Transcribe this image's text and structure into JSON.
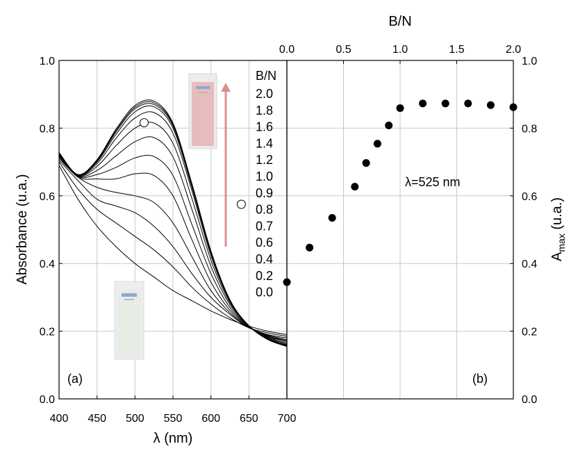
{
  "chart_data": [
    {
      "type": "line",
      "panel_label": "(a)",
      "xlabel": "λ (nm)",
      "ylabel": "Absorbance (u.a.)",
      "xlim": [
        400,
        700
      ],
      "ylim": [
        0.0,
        1.0
      ],
      "x_ticks": [
        "400",
        "450",
        "500",
        "550",
        "600",
        "650",
        "700"
      ],
      "y_ticks": [
        "0.0",
        "0.2",
        "0.4",
        "0.6",
        "0.8",
        "1.0"
      ],
      "grid": true,
      "legend_title": "B/N",
      "legend_entries": [
        "2.0",
        "1.8",
        "1.6",
        "1.4",
        "1.2",
        "1.0",
        "0.9",
        "0.8",
        "0.7",
        "0.6",
        "0.4",
        "0.2",
        "0.0"
      ],
      "arrow_color": "#d9908c",
      "series": [
        {
          "values": [
            [
              400,
              0.69
            ],
            [
              425,
              0.59
            ],
            [
              450,
              0.51
            ],
            [
              475,
              0.45
            ],
            [
              500,
              0.4
            ],
            [
              525,
              0.36
            ],
            [
              550,
              0.32
            ],
            [
              575,
              0.29
            ],
            [
              600,
              0.26
            ],
            [
              625,
              0.235
            ],
            [
              650,
              0.215
            ],
            [
              675,
              0.2
            ],
            [
              700,
              0.19
            ]
          ]
        },
        {
          "values": [
            [
              400,
              0.7
            ],
            [
              425,
              0.62
            ],
            [
              450,
              0.56
            ],
            [
              475,
              0.52
            ],
            [
              500,
              0.48
            ],
            [
              525,
              0.44
            ],
            [
              550,
              0.39
            ],
            [
              575,
              0.33
            ],
            [
              600,
              0.28
            ],
            [
              625,
              0.24
            ],
            [
              650,
              0.21
            ],
            [
              675,
              0.195
            ],
            [
              700,
              0.185
            ]
          ]
        },
        {
          "values": [
            [
              400,
              0.705
            ],
            [
              425,
              0.645
            ],
            [
              450,
              0.59
            ],
            [
              475,
              0.57
            ],
            [
              500,
              0.55
            ],
            [
              525,
              0.51
            ],
            [
              550,
              0.45
            ],
            [
              575,
              0.37
            ],
            [
              600,
              0.3
            ],
            [
              625,
              0.25
            ],
            [
              650,
              0.21
            ],
            [
              675,
              0.19
            ],
            [
              700,
              0.18
            ]
          ]
        },
        {
          "values": [
            [
              400,
              0.71
            ],
            [
              425,
              0.655
            ],
            [
              450,
              0.625
            ],
            [
              475,
              0.61
            ],
            [
              500,
              0.6
            ],
            [
              525,
              0.58
            ],
            [
              550,
              0.52
            ],
            [
              575,
              0.42
            ],
            [
              600,
              0.32
            ],
            [
              625,
              0.255
            ],
            [
              650,
              0.212
            ],
            [
              675,
              0.188
            ],
            [
              700,
              0.175
            ]
          ]
        },
        {
          "values": [
            [
              400,
              0.715
            ],
            [
              425,
              0.655
            ],
            [
              450,
              0.65
            ],
            [
              475,
              0.65
            ],
            [
              500,
              0.665
            ],
            [
              525,
              0.66
            ],
            [
              550,
              0.6
            ],
            [
              575,
              0.47
            ],
            [
              600,
              0.345
            ],
            [
              625,
              0.262
            ],
            [
              650,
              0.213
            ],
            [
              675,
              0.186
            ],
            [
              700,
              0.172
            ]
          ]
        },
        {
          "values": [
            [
              400,
              0.718
            ],
            [
              425,
              0.657
            ],
            [
              450,
              0.663
            ],
            [
              475,
              0.684
            ],
            [
              500,
              0.712
            ],
            [
              525,
              0.716
            ],
            [
              550,
              0.66
            ],
            [
              575,
              0.515
            ],
            [
              600,
              0.37
            ],
            [
              625,
              0.27
            ],
            [
              650,
              0.214
            ],
            [
              675,
              0.184
            ],
            [
              700,
              0.17
            ]
          ]
        },
        {
          "values": [
            [
              400,
              0.72
            ],
            [
              425,
              0.658
            ],
            [
              450,
              0.675
            ],
            [
              475,
              0.718
            ],
            [
              500,
              0.76
            ],
            [
              525,
              0.772
            ],
            [
              550,
              0.715
            ],
            [
              575,
              0.56
            ],
            [
              600,
              0.392
            ],
            [
              625,
              0.278
            ],
            [
              650,
              0.215
            ],
            [
              675,
              0.182
            ],
            [
              700,
              0.166
            ]
          ]
        },
        {
          "values": [
            [
              400,
              0.722
            ],
            [
              425,
              0.659
            ],
            [
              450,
              0.687
            ],
            [
              475,
              0.748
            ],
            [
              500,
              0.8
            ],
            [
              525,
              0.815
            ],
            [
              550,
              0.755
            ],
            [
              575,
              0.592
            ],
            [
              600,
              0.41
            ],
            [
              625,
              0.284
            ],
            [
              650,
              0.216
            ],
            [
              675,
              0.18
            ],
            [
              700,
              0.163
            ]
          ]
        },
        {
          "values": [
            [
              400,
              0.724
            ],
            [
              425,
              0.66
            ],
            [
              450,
              0.695
            ],
            [
              475,
              0.77
            ],
            [
              500,
              0.83
            ],
            [
              525,
              0.846
            ],
            [
              550,
              0.785
            ],
            [
              575,
              0.615
            ],
            [
              600,
              0.423
            ],
            [
              625,
              0.288
            ],
            [
              650,
              0.216
            ],
            [
              675,
              0.178
            ],
            [
              700,
              0.16
            ]
          ]
        },
        {
          "values": [
            [
              400,
              0.725
            ],
            [
              425,
              0.661
            ],
            [
              450,
              0.7
            ],
            [
              475,
              0.782
            ],
            [
              500,
              0.848
            ],
            [
              525,
              0.863
            ],
            [
              550,
              0.8
            ],
            [
              575,
              0.625
            ],
            [
              600,
              0.43
            ],
            [
              625,
              0.29
            ],
            [
              650,
              0.216
            ],
            [
              675,
              0.177
            ],
            [
              700,
              0.158
            ]
          ]
        },
        {
          "values": [
            [
              400,
              0.726
            ],
            [
              425,
              0.662
            ],
            [
              450,
              0.703
            ],
            [
              475,
              0.789
            ],
            [
              500,
              0.857
            ],
            [
              525,
              0.87
            ],
            [
              550,
              0.807
            ],
            [
              575,
              0.63
            ],
            [
              600,
              0.433
            ],
            [
              625,
              0.291
            ],
            [
              650,
              0.216
            ],
            [
              675,
              0.176
            ],
            [
              700,
              0.157
            ]
          ]
        },
        {
          "values": [
            [
              400,
              0.727
            ],
            [
              425,
              0.662
            ],
            [
              450,
              0.705
            ],
            [
              475,
              0.793
            ],
            [
              500,
              0.862
            ],
            [
              525,
              0.875
            ],
            [
              550,
              0.811
            ],
            [
              575,
              0.633
            ],
            [
              600,
              0.435
            ],
            [
              625,
              0.292
            ],
            [
              650,
              0.216
            ],
            [
              675,
              0.176
            ],
            [
              700,
              0.156
            ]
          ]
        },
        {
          "values": [
            [
              400,
              0.728
            ],
            [
              425,
              0.663
            ],
            [
              450,
              0.707
            ],
            [
              475,
              0.797
            ],
            [
              500,
              0.867
            ],
            [
              525,
              0.88
            ],
            [
              550,
              0.815
            ],
            [
              575,
              0.636
            ],
            [
              600,
              0.437
            ],
            [
              625,
              0.293
            ],
            [
              650,
              0.216
            ],
            [
              675,
              0.175
            ],
            [
              700,
              0.155
            ]
          ]
        }
      ],
      "open_markers": [
        [
          512,
          0.816
        ],
        [
          640,
          0.575
        ]
      ]
    },
    {
      "type": "scatter",
      "panel_label": "(b)",
      "xlabel": "B/N",
      "ylabel": "A",
      "ylabel_sub": "max",
      "ylabel_suffix": " (u.a.)",
      "xlim": [
        0.0,
        2.0
      ],
      "ylim": [
        0.0,
        1.0
      ],
      "x_ticks": [
        "0.0",
        "0.5",
        "1.0",
        "1.5",
        "2.0"
      ],
      "y_ticks": [
        "0.0",
        "0.2",
        "0.4",
        "0.6",
        "0.8",
        "1.0"
      ],
      "grid": true,
      "annotation": "λ=525 nm",
      "x": [
        0.0,
        0.2,
        0.4,
        0.6,
        0.7,
        0.8,
        0.9,
        1.0,
        1.2,
        1.4,
        1.6,
        1.8,
        2.0
      ],
      "y": [
        0.345,
        0.447,
        0.535,
        0.627,
        0.697,
        0.754,
        0.808,
        0.859,
        0.873,
        0.873,
        0.873,
        0.868,
        0.862
      ]
    }
  ]
}
